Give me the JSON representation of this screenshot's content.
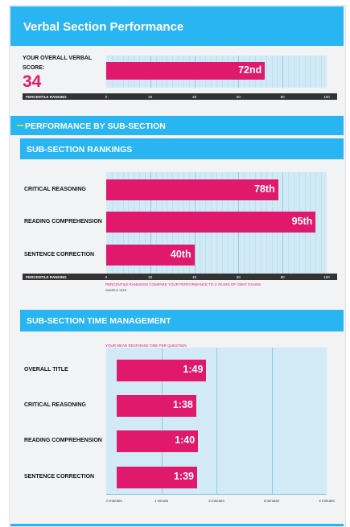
{
  "header": {
    "title": "Verbal Section Performance"
  },
  "overall": {
    "label_line1": "YOUR OVERALL VERBAL",
    "label_line2": "SCORE:",
    "score": "34"
  },
  "sections": {
    "performance": "PERFORMANCE BY SUB-SECTION",
    "rankings": "SUB-SECTION RANKINGS",
    "time": "SUB-SECTION TIME MANAGEMENT"
  },
  "notes": {
    "percentile_note": "PERCENTILE RANKINGS COMPARE YOUR PERFORMANCE TO 3 YEARS OF GMAT EXAMS",
    "sample_size": "SAMPLE SIZE",
    "time_note": "YOUR MEAN RESPONSE TIME PER QUESTION"
  },
  "colors": {
    "accent": "#29b4f2",
    "bar": "#e0196c",
    "plot_bg": "#d2eaf6",
    "axis": "#333333"
  },
  "chart_data": [
    {
      "type": "bar",
      "orientation": "horizontal",
      "categories": [
        ""
      ],
      "values": [
        72
      ],
      "value_labels": [
        "72nd"
      ],
      "xlabel": "PERCENTILE RANKING",
      "xticks": [
        "0",
        "20",
        "40",
        "60",
        "80",
        "100"
      ],
      "xlim": [
        0,
        100
      ],
      "grid": true
    },
    {
      "type": "bar",
      "orientation": "horizontal",
      "title": "SUB-SECTION RANKINGS",
      "categories": [
        "CRITICAL REASONING",
        "READING COMPREHENSION",
        "SENTENCE CORRECTION"
      ],
      "values": [
        78,
        95,
        40
      ],
      "value_labels": [
        "78th",
        "95th",
        "40th"
      ],
      "xlabel": "PERCENTILE RANKING",
      "xticks": [
        "0",
        "20",
        "40",
        "60",
        "80",
        "100"
      ],
      "xlim": [
        0,
        100
      ],
      "grid": true
    },
    {
      "type": "bar",
      "orientation": "horizontal",
      "title": "SUB-SECTION TIME MANAGEMENT",
      "categories": [
        "OVERALL TITLE",
        "CRITICAL REASONING",
        "READING COMPREHENSION",
        "SENTENCE CORRECTION"
      ],
      "values": [
        1.817,
        1.633,
        1.667,
        1.65
      ],
      "value_labels": [
        "1:49",
        "1:38",
        "1:40",
        "1:39"
      ],
      "xticks": [
        "0 minutes",
        "1 minute",
        "2 minutes",
        "3 minutes",
        "4 minutes"
      ],
      "xlim": [
        0,
        4
      ],
      "grid": true
    }
  ]
}
